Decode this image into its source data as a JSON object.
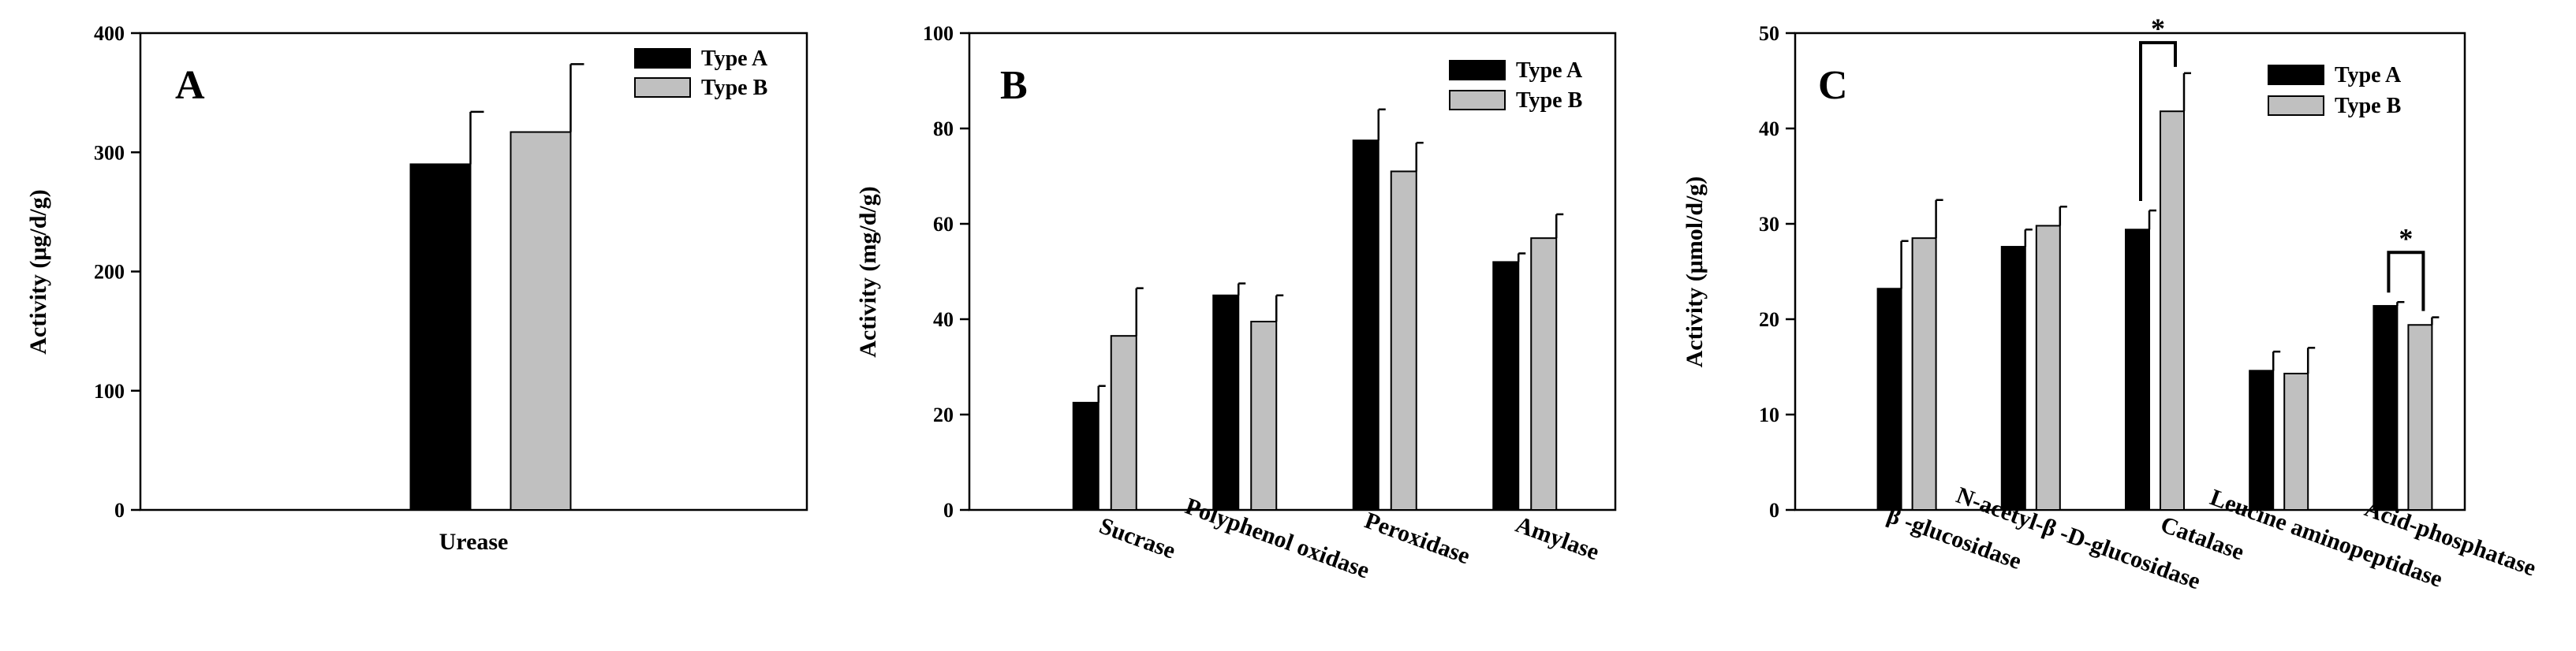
{
  "chart_data": [
    {
      "type": "bar",
      "panel": "A",
      "title": "",
      "xlabel": "",
      "ylabel": "Activity (μg/d/g)",
      "ylim": [
        0,
        400
      ],
      "yticks": [
        0,
        100,
        200,
        300,
        400
      ],
      "categories": [
        "Urease"
      ],
      "legend": {
        "position": "top-right",
        "entries": [
          "Type A",
          "Type B"
        ]
      },
      "series": [
        {
          "name": "Type A",
          "color": "#000000",
          "values": [
            290
          ],
          "errors": [
            44
          ]
        },
        {
          "name": "Type B",
          "color": "#c0c0c0",
          "values": [
            317
          ],
          "errors": [
            57
          ]
        }
      ],
      "significance": []
    },
    {
      "type": "bar",
      "panel": "B",
      "title": "",
      "xlabel": "",
      "ylabel": "Activity (mg/d/g)",
      "ylim": [
        0,
        100
      ],
      "yticks": [
        0,
        20,
        40,
        60,
        80,
        100
      ],
      "categories": [
        "Sucrase",
        "Polyphenol oxidase",
        "Peroxidase",
        "Amylase"
      ],
      "legend": {
        "position": "top-right",
        "entries": [
          "Type A",
          "Type B"
        ]
      },
      "series": [
        {
          "name": "Type A",
          "color": "#000000",
          "values": [
            22.5,
            45,
            77.5,
            52
          ],
          "errors": [
            3.5,
            2.5,
            6.5,
            1.8
          ]
        },
        {
          "name": "Type B",
          "color": "#c0c0c0",
          "values": [
            36.5,
            39.5,
            71,
            57
          ],
          "errors": [
            10,
            5.5,
            6,
            5
          ]
        }
      ],
      "significance": []
    },
    {
      "type": "bar",
      "panel": "C",
      "title": "",
      "xlabel": "",
      "ylabel": "Activity (μmol/d/g)",
      "ylim": [
        0,
        50
      ],
      "yticks": [
        0,
        10,
        20,
        30,
        40,
        50
      ],
      "categories": [
        "β -glucosidase",
        "N-acetyl-β -D-glucosidase",
        "Catalase",
        "Leucine aminopeptidase",
        "Acid-phosphatase"
      ],
      "legend": {
        "position": "top-right",
        "entries": [
          "Type A",
          "Type B"
        ]
      },
      "series": [
        {
          "name": "Type A",
          "color": "#000000",
          "values": [
            23.2,
            27.6,
            29.4,
            14.6,
            21.4
          ],
          "errors": [
            5,
            1.8,
            2,
            2,
            0.4
          ]
        },
        {
          "name": "Type B",
          "color": "#c0c0c0",
          "values": [
            28.5,
            29.8,
            41.8,
            14.3,
            19.4
          ],
          "errors": [
            4,
            2,
            4,
            2.7,
            0.8
          ]
        }
      ],
      "significance": [
        {
          "category_index": 2,
          "label": "*",
          "level": 49
        },
        {
          "category_index": 4,
          "label": "*",
          "level": 27
        }
      ]
    }
  ]
}
